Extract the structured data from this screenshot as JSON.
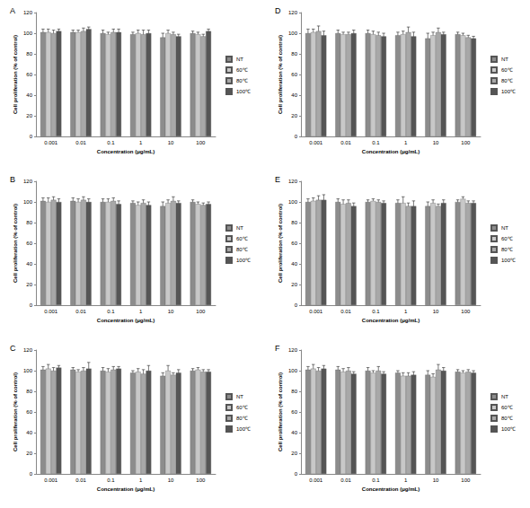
{
  "chart_data": [
    {
      "type": "bar",
      "title": "A",
      "x_label": "Concentration (μg/mL)",
      "y_label": "Cell proliferation (% of control)",
      "categories": [
        "0.001",
        "0.01",
        "0.1",
        "1",
        "10",
        "100"
      ],
      "ylim": [
        0,
        120
      ],
      "yticks": [
        0,
        20,
        40,
        60,
        80,
        100,
        120
      ],
      "grid": false,
      "legend": "right",
      "series": [
        {
          "name": "NT",
          "color": "#8c8c8c",
          "values": [
            101,
            101,
            100,
            99,
            96,
            100
          ],
          "errors": [
            3,
            2,
            3,
            2,
            4,
            2
          ]
        },
        {
          "name": "60℃",
          "color": "#c8c8c8",
          "values": [
            101,
            101,
            99,
            100,
            100,
            99
          ],
          "errors": [
            3,
            2,
            2,
            3,
            3,
            2
          ]
        },
        {
          "name": "80℃",
          "color": "#a8a8a8",
          "values": [
            100,
            102,
            101,
            99,
            99,
            97
          ],
          "errors": [
            3,
            3,
            3,
            4,
            2,
            2
          ]
        },
        {
          "name": "100℃",
          "color": "#555555",
          "values": [
            102,
            104,
            101,
            100,
            97,
            102
          ],
          "errors": [
            2,
            2,
            3,
            3,
            2,
            2
          ]
        }
      ]
    },
    {
      "type": "bar",
      "title": "B",
      "x_label": "Concentration (μg/mL)",
      "y_label": "Cell proliferation (% of control)",
      "categories": [
        "0.001",
        "0.01",
        "0.1",
        "1",
        "10",
        "100"
      ],
      "ylim": [
        0,
        120
      ],
      "yticks": [
        0,
        20,
        40,
        60,
        80,
        100,
        120
      ],
      "grid": false,
      "legend": "right",
      "series": [
        {
          "name": "NT",
          "color": "#8c8c8c",
          "values": [
            101,
            101,
            100,
            99,
            96,
            100
          ],
          "errors": [
            3,
            3,
            3,
            2,
            4,
            2
          ]
        },
        {
          "name": "60℃",
          "color": "#c8c8c8",
          "values": [
            100,
            100,
            100,
            97,
            99,
            98
          ],
          "errors": [
            4,
            3,
            3,
            3,
            3,
            2
          ]
        },
        {
          "name": "80℃",
          "color": "#a8a8a8",
          "values": [
            102,
            102,
            101,
            99,
            101,
            97
          ],
          "errors": [
            3,
            3,
            3,
            3,
            4,
            2
          ]
        },
        {
          "name": "100℃",
          "color": "#555555",
          "values": [
            100,
            100,
            98,
            97,
            99,
            98
          ],
          "errors": [
            3,
            3,
            3,
            3,
            2,
            2
          ]
        }
      ]
    },
    {
      "type": "bar",
      "title": "C",
      "x_label": "Concentration (μg/mL)",
      "y_label": "Cell proliferation (% of control)",
      "categories": [
        "0.001",
        "0.01",
        "0.1",
        "1",
        "10",
        "100"
      ],
      "ylim": [
        0,
        120
      ],
      "yticks": [
        0,
        20,
        40,
        60,
        80,
        100,
        120
      ],
      "grid": false,
      "legend": "right",
      "series": [
        {
          "name": "NT",
          "color": "#8c8c8c",
          "values": [
            101,
            101,
            100,
            98,
            95,
            100
          ],
          "errors": [
            3,
            2,
            3,
            2,
            3,
            2
          ]
        },
        {
          "name": "60℃",
          "color": "#c8c8c8",
          "values": [
            102,
            99,
            99,
            99,
            100,
            101
          ],
          "errors": [
            4,
            2,
            3,
            3,
            5,
            2
          ]
        },
        {
          "name": "80℃",
          "color": "#a8a8a8",
          "values": [
            100,
            100,
            101,
            97,
            96,
            99
          ],
          "errors": [
            3,
            3,
            3,
            4,
            2,
            2
          ]
        },
        {
          "name": "100℃",
          "color": "#555555",
          "values": [
            103,
            102,
            102,
            100,
            98,
            99
          ],
          "errors": [
            2,
            6,
            2,
            5,
            3,
            2
          ]
        }
      ]
    },
    {
      "type": "bar",
      "title": "D",
      "x_label": "Concentration (μg/mL)",
      "y_label": "Cell proliferation (% of control)",
      "categories": [
        "0.001",
        "0.01",
        "0.1",
        "1",
        "10",
        "100"
      ],
      "ylim": [
        0,
        120
      ],
      "yticks": [
        0,
        20,
        40,
        60,
        80,
        100,
        120
      ],
      "grid": false,
      "legend": "right",
      "series": [
        {
          "name": "NT",
          "color": "#8c8c8c",
          "values": [
            100,
            100,
            100,
            98,
            95,
            99
          ],
          "errors": [
            4,
            3,
            3,
            3,
            5,
            2
          ]
        },
        {
          "name": "60℃",
          "color": "#c8c8c8",
          "values": [
            101,
            99,
            99,
            99,
            98,
            98
          ],
          "errors": [
            3,
            2,
            3,
            3,
            3,
            2
          ]
        },
        {
          "name": "80℃",
          "color": "#a8a8a8",
          "values": [
            102,
            99,
            98,
            101,
            101,
            96
          ],
          "errors": [
            5,
            2,
            3,
            5,
            4,
            2
          ]
        },
        {
          "name": "100℃",
          "color": "#555555",
          "values": [
            98,
            100,
            97,
            97,
            99,
            95
          ],
          "errors": [
            4,
            3,
            3,
            4,
            2,
            2
          ]
        }
      ]
    },
    {
      "type": "bar",
      "title": "E",
      "x_label": "Concentration (μg/mL)",
      "y_label": "Cell proliferation (% of control)",
      "categories": [
        "0.001",
        "0.01",
        "0.1",
        "1",
        "10",
        "100"
      ],
      "ylim": [
        0,
        120
      ],
      "yticks": [
        0,
        20,
        40,
        60,
        80,
        100,
        120
      ],
      "grid": false,
      "legend": "right",
      "series": [
        {
          "name": "NT",
          "color": "#8c8c8c",
          "values": [
            100,
            100,
            100,
            99,
            96,
            100
          ],
          "errors": [
            3,
            3,
            2,
            3,
            4,
            2
          ]
        },
        {
          "name": "60℃",
          "color": "#c8c8c8",
          "values": [
            101,
            98,
            101,
            99,
            99,
            103
          ],
          "errors": [
            3,
            4,
            2,
            6,
            3,
            2
          ]
        },
        {
          "name": "80℃",
          "color": "#a8a8a8",
          "values": [
            102,
            99,
            100,
            96,
            96,
            99
          ],
          "errors": [
            4,
            3,
            2,
            3,
            2,
            2
          ]
        },
        {
          "name": "100℃",
          "color": "#555555",
          "values": [
            102,
            96,
            99,
            96,
            99,
            99
          ],
          "errors": [
            5,
            3,
            2,
            5,
            3,
            2
          ]
        }
      ]
    },
    {
      "type": "bar",
      "title": "F",
      "x_label": "Concentration (μg/mL)",
      "y_label": "Cell proliferation (% of control)",
      "categories": [
        "0.001",
        "0.01",
        "0.1",
        "1",
        "10",
        "100"
      ],
      "ylim": [
        0,
        120
      ],
      "yticks": [
        0,
        20,
        40,
        60,
        80,
        100,
        120
      ],
      "grid": false,
      "legend": "right",
      "series": [
        {
          "name": "NT",
          "color": "#8c8c8c",
          "values": [
            101,
            101,
            100,
            98,
            96,
            99
          ],
          "errors": [
            3,
            3,
            3,
            2,
            4,
            2
          ]
        },
        {
          "name": "60℃",
          "color": "#c8c8c8",
          "values": [
            102,
            99,
            98,
            95,
            94,
            98
          ],
          "errors": [
            4,
            3,
            2,
            3,
            3,
            2
          ]
        },
        {
          "name": "80℃",
          "color": "#a8a8a8",
          "values": [
            100,
            100,
            100,
            95,
            101,
            99
          ],
          "errors": [
            3,
            3,
            4,
            3,
            5,
            2
          ]
        },
        {
          "name": "100℃",
          "color": "#555555",
          "values": [
            102,
            97,
            97,
            96,
            100,
            98
          ],
          "errors": [
            3,
            2,
            2,
            3,
            3,
            2
          ]
        }
      ]
    }
  ]
}
